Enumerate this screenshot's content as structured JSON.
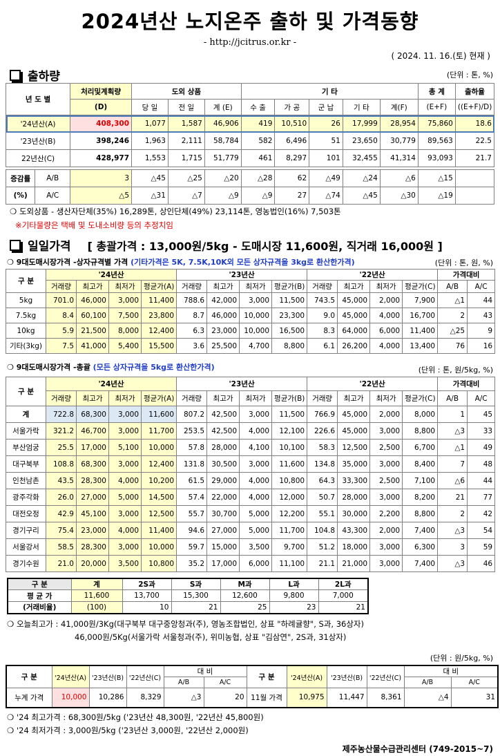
{
  "header": {
    "title": "2024년산 노지온주 출하 및 가격동향",
    "url": "- http://jcitrus.or.kr -",
    "date": "( 2024. 11. 16.(토) 현재 )"
  },
  "shipment": {
    "title": "출하량",
    "unit": "(단위 : 톤, %)",
    "headers": {
      "year": "년 도 별",
      "plan": "처리및계획량",
      "plan_sub": "(D)",
      "outside": "도외 상품",
      "daily": "당 일",
      "prev": "전 일",
      "sum_e": "계 (E)",
      "other": "기 타",
      "export": "수 출",
      "process": "가 공",
      "army": "군 납",
      "etc": "기 타",
      "sum_f": "계(F)",
      "total": "총 계",
      "total_sub": "(E+F)",
      "rate": "출하율",
      "rate_sub": "((E+F)/D)"
    },
    "rows": [
      {
        "label": "'24년산(A)",
        "cells": [
          "408,300",
          "1,077",
          "1,587",
          "46,906",
          "419",
          "10,510",
          "26",
          "17,999",
          "28,954",
          "75,860",
          "18.6"
        ]
      },
      {
        "label": "'23년산(B)",
        "cells": [
          "398,246",
          "1,963",
          "2,111",
          "58,784",
          "582",
          "6,496",
          "51",
          "23,650",
          "30,779",
          "89,563",
          "22.5"
        ]
      },
      {
        "label": "22년산(C)",
        "cells": [
          "428,977",
          "1,553",
          "1,715",
          "51,779",
          "461",
          "8,297",
          "101",
          "32,455",
          "41,314",
          "93,093",
          "21.7"
        ]
      }
    ],
    "change_label": "증감률",
    "change_pct": "(%)",
    "change": [
      {
        "label": "A/B",
        "cells": [
          "3",
          "△45",
          "△25",
          "△20",
          "△28",
          "62",
          "△49",
          "△24",
          "△6",
          "△15",
          ""
        ]
      },
      {
        "label": "A/C",
        "cells": [
          "△5",
          "△31",
          "△7",
          "△9",
          "△9",
          "27",
          "△74",
          "△45",
          "△30",
          "△19",
          ""
        ]
      }
    ],
    "note1": "❍ 도외상품 - 생산자단체(35%) 16,289톤, 상인단체(49%) 23,114톤, 영농법인(16%) 7,503톤",
    "note2": "※기타물량은 택배 및 도내소비량 등의 추정치임"
  },
  "daily": {
    "title": "일일가격",
    "summary": "[ 총괄가격 : 13,000원/5kg - 도매시장 11,600원, 직거래 16,000원 ]"
  },
  "spec": {
    "title": "❍ 9대도매시장가격 -상자규격별 가격",
    "title_note": "(기타가격은 5K, 7.5K,10K외 모든 상자규격을 3kg로 환산한가격)",
    "unit": "(단위 : 톤, 원, %)",
    "label": "구  분",
    "years": [
      "'24년산",
      "'23년산",
      "'22년산"
    ],
    "cols": [
      "거래량",
      "최고가",
      "최저가"
    ],
    "avg": [
      "평균가(A)",
      "평균가(B)",
      "평균가(C)"
    ],
    "cmp": "가격대비",
    "cmp_cols": [
      "A/B",
      "A/C"
    ],
    "rows": [
      {
        "label": "5kg",
        "cells": [
          "701.0",
          "46,000",
          "3,000",
          "11,400",
          "788.6",
          "42,000",
          "3,000",
          "11,500",
          "743.5",
          "45,000",
          "2,000",
          "7,900",
          "△1",
          "44"
        ]
      },
      {
        "label": "7.5kg",
        "cells": [
          "8.4",
          "60,100",
          "7,500",
          "23,800",
          "8.7",
          "46,000",
          "10,000",
          "23,300",
          "9.0",
          "45,000",
          "4,000",
          "16,700",
          "2",
          "43"
        ]
      },
      {
        "label": "10kg",
        "cells": [
          "5.9",
          "21,500",
          "8,000",
          "12,400",
          "6.3",
          "23,000",
          "10,000",
          "16,500",
          "8.3",
          "64,000",
          "6,000",
          "11,400",
          "△25",
          "9"
        ]
      },
      {
        "label": "기타(3kg)",
        "cells": [
          "7.5",
          "41,000",
          "5,400",
          "15,500",
          "3.6",
          "25,500",
          "4,700",
          "8,800",
          "6.1",
          "26,200",
          "4,000",
          "13,400",
          "76",
          "16"
        ]
      }
    ]
  },
  "total": {
    "title": "❍ 9대도매시장가격 -총괄",
    "title_note": "(모든 상자규격을 5kg로 환산한가격)",
    "unit": "(단위 : 톤, 원/5kg, %)",
    "label": "구  분",
    "years": [
      "'24년산",
      "'23년산",
      "'22년산"
    ],
    "cols": [
      "거래량",
      "최고가",
      "최저가"
    ],
    "avg": [
      "평균가(A)",
      "평균가(B)",
      "평균가(C)"
    ],
    "cmp": "가격대비",
    "cmp_cols": [
      "A/B",
      "A/C"
    ],
    "rows": [
      {
        "label": "계",
        "cells": [
          "722.8",
          "68,300",
          "3,000",
          "11,600",
          "807.2",
          "42,500",
          "3,000",
          "11,500",
          "766.9",
          "45,000",
          "2,000",
          "8,000",
          "1",
          "45"
        ]
      },
      {
        "label": "서울가락",
        "cells": [
          "321.2",
          "46,700",
          "3,000",
          "11,700",
          "253.5",
          "42,500",
          "4,000",
          "12,100",
          "226.6",
          "45,000",
          "3,000",
          "8,800",
          "△3",
          "33"
        ]
      },
      {
        "label": "부산엄궁",
        "cells": [
          "25.5",
          "17,000",
          "5,100",
          "10,000",
          "57.8",
          "28,000",
          "4,100",
          "10,100",
          "58.3",
          "12,500",
          "2,500",
          "6,700",
          "△1",
          "49"
        ]
      },
      {
        "label": "대구북부",
        "cells": [
          "108.8",
          "68,300",
          "3,000",
          "12,400",
          "131.8",
          "30,500",
          "3,000",
          "11,600",
          "134.8",
          "35,000",
          "3,000",
          "8,400",
          "7",
          "48"
        ]
      },
      {
        "label": "인천남촌",
        "cells": [
          "43.5",
          "28,300",
          "4,000",
          "10,200",
          "61.5",
          "29,000",
          "4,000",
          "10,800",
          "64.3",
          "33,300",
          "2,500",
          "7,100",
          "△6",
          "44"
        ]
      },
      {
        "label": "광주각화",
        "cells": [
          "26.0",
          "27,000",
          "5,000",
          "14,500",
          "57.4",
          "22,000",
          "4,000",
          "12,000",
          "50.7",
          "28,000",
          "3,000",
          "8,200",
          "21",
          "77"
        ]
      },
      {
        "label": "대전오정",
        "cells": [
          "42.9",
          "45,100",
          "3,000",
          "12,500",
          "55.7",
          "30,700",
          "5,000",
          "12,200",
          "55.1",
          "30,000",
          "2,200",
          "8,800",
          "2",
          "42"
        ]
      },
      {
        "label": "경기구리",
        "cells": [
          "75.4",
          "23,000",
          "4,000",
          "11,400",
          "94.6",
          "27,000",
          "5,000",
          "11,700",
          "104.8",
          "43,300",
          "2,000",
          "7,400",
          "△3",
          "54"
        ]
      },
      {
        "label": "서울강서",
        "cells": [
          "58.5",
          "28,300",
          "3,000",
          "10,000",
          "59.7",
          "15,000",
          "3,500",
          "9,700",
          "51.2",
          "18,000",
          "3,000",
          "6,300",
          "3",
          "59"
        ]
      },
      {
        "label": "경기수원",
        "cells": [
          "21.0",
          "20,000",
          "3,500",
          "10,800",
          "35.2",
          "17,000",
          "6,000",
          "11,100",
          "21.1",
          "21,000",
          "3,000",
          "7,400",
          "△3",
          "46"
        ]
      }
    ]
  },
  "grade": {
    "label": "구  분",
    "cols": [
      "계",
      "2S과",
      "S과",
      "M과",
      "L과",
      "2L과"
    ],
    "avg_label": "평 균 가",
    "avg": [
      "11,600",
      "13,700",
      "15,300",
      "12,600",
      "9,800",
      "7,000"
    ],
    "ratio_label": "(거래비율)",
    "ratio": [
      "(100)",
      "10",
      "21",
      "25",
      "23",
      "21"
    ]
  },
  "today": {
    "line1": "❍ 오늘최고가 : 41,000원/3Kg(대구북부 대구중앙청과(주), 영농조합법인, 상표 \"하례귤향\", S과, 36상자)",
    "line2": "46,000원/5Kg(서울가락  서울청과(주),  위미농협, 상표 \"김삼연\", 2S과, 31상자)"
  },
  "cumulative": {
    "unit": "(단위 : 원/5kg, %)",
    "label": "구  분",
    "cols": [
      "'24년산(A)",
      "'23년산(B)",
      "'22년산(C)"
    ],
    "cmp": "대  비",
    "cmp_cols": [
      "A/B",
      "A/C"
    ],
    "row1": {
      "label": "누계 가격",
      "cells": [
        "10,000",
        "10,286",
        "8,329",
        "△3",
        "20"
      ]
    },
    "row2": {
      "label": "11월 가격",
      "cells": [
        "10,975",
        "11,447",
        "8,361",
        "△4",
        "31"
      ]
    }
  },
  "footer": {
    "max": "❍ '24 최고가격 : 68,300원/5kg ('23년산 48,300원, '22년산 45,800원)",
    "min": "❍ '24 최저가격 :   3,000원/5kg ('23년산  3,000원, '22년산  2,000원)",
    "org": "제주농산물수급관리센터 (749-2015~7)"
  }
}
